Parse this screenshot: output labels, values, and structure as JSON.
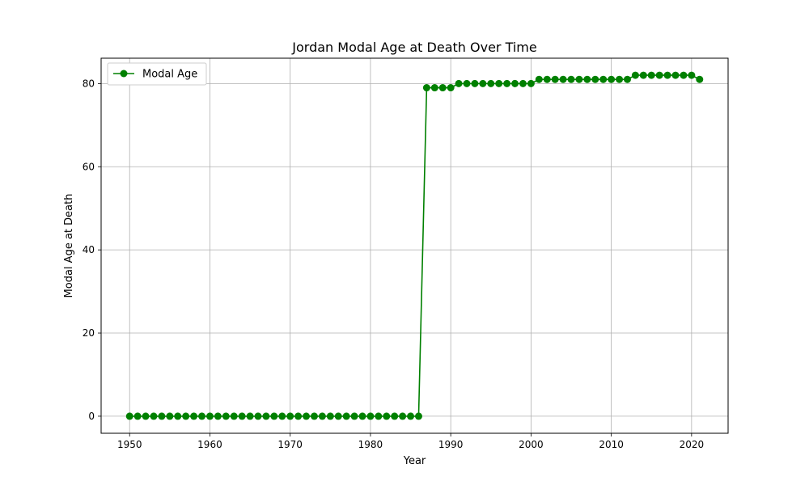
{
  "chart_data": {
    "type": "line",
    "title": "Jordan Modal Age at Death Over Time",
    "xlabel": "Year",
    "ylabel": "Modal Age at Death",
    "xlim": [
      1946.45,
      2024.55
    ],
    "ylim": [
      -4.1,
      86.1
    ],
    "x_ticks": [
      1950,
      1960,
      1970,
      1980,
      1990,
      2000,
      2010,
      2020
    ],
    "y_ticks": [
      0,
      20,
      40,
      60,
      80
    ],
    "grid": true,
    "legend_position": "top-left",
    "series": [
      {
        "name": "Modal Age",
        "color": "#008000",
        "marker": "circle",
        "x": [
          1950,
          1951,
          1952,
          1953,
          1954,
          1955,
          1956,
          1957,
          1958,
          1959,
          1960,
          1961,
          1962,
          1963,
          1964,
          1965,
          1966,
          1967,
          1968,
          1969,
          1970,
          1971,
          1972,
          1973,
          1974,
          1975,
          1976,
          1977,
          1978,
          1979,
          1980,
          1981,
          1982,
          1983,
          1984,
          1985,
          1986,
          1987,
          1988,
          1989,
          1990,
          1991,
          1992,
          1993,
          1994,
          1995,
          1996,
          1997,
          1998,
          1999,
          2000,
          2001,
          2002,
          2003,
          2004,
          2005,
          2006,
          2007,
          2008,
          2009,
          2010,
          2011,
          2012,
          2013,
          2014,
          2015,
          2016,
          2017,
          2018,
          2019,
          2020,
          2021
        ],
        "y": [
          0,
          0,
          0,
          0,
          0,
          0,
          0,
          0,
          0,
          0,
          0,
          0,
          0,
          0,
          0,
          0,
          0,
          0,
          0,
          0,
          0,
          0,
          0,
          0,
          0,
          0,
          0,
          0,
          0,
          0,
          0,
          0,
          0,
          0,
          0,
          0,
          0,
          79,
          79,
          79,
          79,
          80,
          80,
          80,
          80,
          80,
          80,
          80,
          80,
          80,
          80,
          81,
          81,
          81,
          81,
          81,
          81,
          81,
          81,
          81,
          81,
          81,
          81,
          82,
          82,
          82,
          82,
          82,
          82,
          82,
          82,
          81
        ]
      }
    ]
  }
}
